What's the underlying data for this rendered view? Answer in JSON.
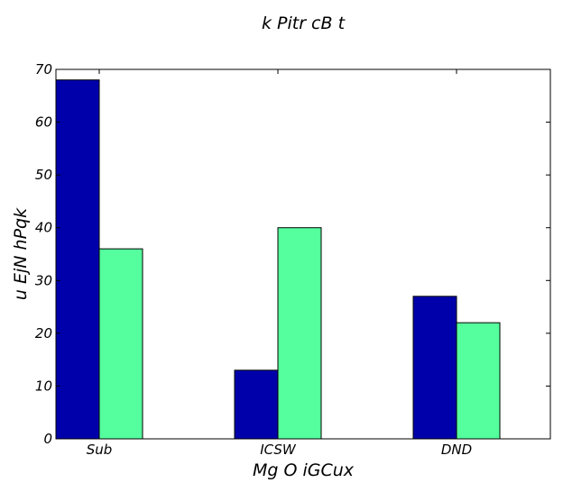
{
  "chart_data": {
    "type": "bar",
    "title": "k Pitr cB t",
    "xlabel": "Mg  O iGCux",
    "ylabel": "u  EjN hPqk",
    "categories": [
      "Sub",
      "ICSW",
      "DND"
    ],
    "series": [
      {
        "values": [
          68,
          13,
          27
        ],
        "color": "#0000aa"
      },
      {
        "values": [
          36,
          40,
          22
        ],
        "color": "#55ff9e"
      }
    ],
    "ylim": [
      0,
      70
    ],
    "yticks": [
      0,
      10,
      20,
      30,
      40,
      50,
      60,
      70
    ],
    "grid": false,
    "legend": "none"
  }
}
